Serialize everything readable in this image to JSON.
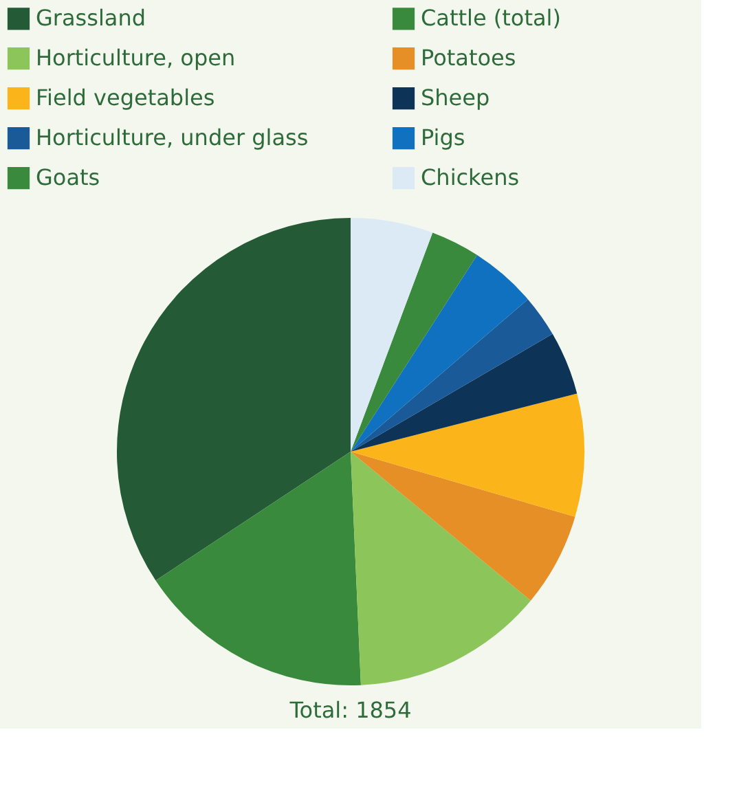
{
  "chart_data": {
    "type": "pie",
    "categories": [
      "Grassland",
      "Cattle (total)",
      "Horticulture, open",
      "Potatoes",
      "Field vegetables",
      "Sheep",
      "Horticulture, under glass",
      "Pigs",
      "Goats",
      "Chickens"
    ],
    "values": [
      34.3,
      16.4,
      13.3,
      6.5,
      8.5,
      4.4,
      2.9,
      4.6,
      3.4,
      5.7
    ],
    "colors": [
      "#245a35",
      "#3a8a3e",
      "#8cc65a",
      "#e58f26",
      "#fbb51a",
      "#0d3357",
      "#1a5a99",
      "#0f71bf",
      "#3a8a3e",
      "#dbeaf5"
    ],
    "legend": "top",
    "annotations": [
      "Total: 1854"
    ]
  }
}
